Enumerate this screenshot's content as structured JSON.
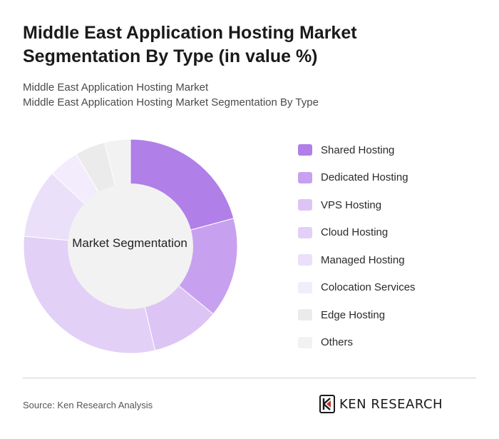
{
  "header": {
    "title": "Middle East Application Hosting Market Segmentation By Type (in value %)",
    "subtitle_line1": "Middle East Application Hosting Market",
    "subtitle_line2": "Middle East Application Hosting Market Segmentation By Type"
  },
  "chart_data": {
    "type": "pie",
    "variant": "donut",
    "center_label": "Market Segmentation",
    "legend_position": "right",
    "series": [
      {
        "name": "Shared Hosting",
        "value": 20.8,
        "color": "#b07fe8"
      },
      {
        "name": "Dedicated Hosting",
        "value": 15.1,
        "color": "#c7a1ef"
      },
      {
        "name": "VPS Hosting",
        "value": 10.4,
        "color": "#dcc5f5"
      },
      {
        "name": "Cloud Hosting",
        "value": 30.2,
        "color": "#e2d0f7"
      },
      {
        "name": "Managed Hosting",
        "value": 10.4,
        "color": "#eae0fa"
      },
      {
        "name": "Colocation Services",
        "value": 4.6,
        "color": "#f2ecfc"
      },
      {
        "name": "Edge Hosting",
        "value": 4.6,
        "color": "#ebebeb"
      },
      {
        "name": "Others",
        "value": 3.9,
        "color": "#f2f2f2"
      }
    ]
  },
  "footer": {
    "source": "Source: Ken Research Analysis",
    "logo_text": "KEN RESEARCH"
  }
}
